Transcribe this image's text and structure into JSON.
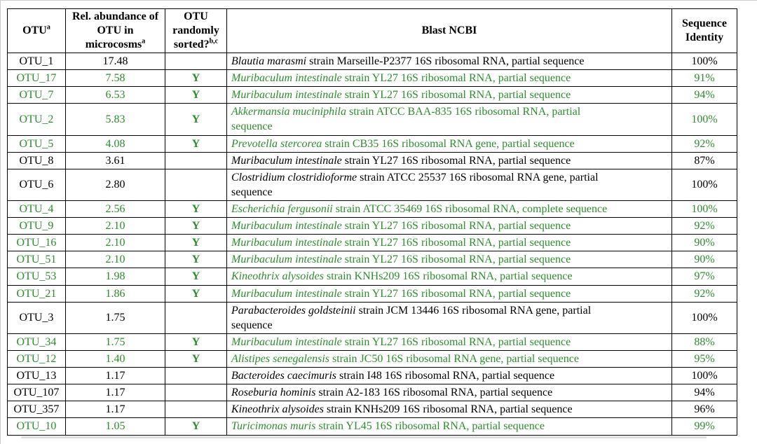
{
  "colors": {
    "highlight_green": "#2e8b2e",
    "text_black": "#000000",
    "border_black": "#000000"
  },
  "table": {
    "headers": [
      {
        "label": "OTU",
        "sup": "a"
      },
      {
        "label": "Rel. abundance of OTU in microcosms",
        "sup": "a"
      },
      {
        "label": "OTU randomly sorted?",
        "sup": "b,c"
      },
      {
        "label": "Blast NCBI",
        "sup": ""
      },
      {
        "label": "Sequence Identity",
        "sup": ""
      }
    ],
    "rows": [
      {
        "otu": "OTU_1",
        "abundance": "17.48",
        "sorted": "",
        "species": "Blautia marasmi",
        "description": " strain Marseille-P2377 16S ribosomal RNA, partial sequence",
        "identity": "100%",
        "highlighted": false
      },
      {
        "otu": "OTU_17",
        "abundance": "7.58",
        "sorted": "Y",
        "species": "Muribaculum intestinale",
        "description": " strain YL27 16S ribosomal RNA, partial sequence",
        "identity": "91%",
        "highlighted": true
      },
      {
        "otu": "OTU_7",
        "abundance": "6.53",
        "sorted": "Y",
        "species": "Muribaculum intestinale",
        "description": " strain YL27 16S ribosomal RNA, partial sequence",
        "identity": "94%",
        "highlighted": true
      },
      {
        "otu": "OTU_2",
        "abundance": "5.83",
        "sorted": "Y",
        "species": "Akkermansia muciniphila",
        "description": " strain ATCC BAA-835 16S ribosomal RNA, partial\nsequence",
        "identity": "100%",
        "highlighted": true
      },
      {
        "otu": "OTU_5",
        "abundance": "4.08",
        "sorted": "Y",
        "species": "Prevotella stercorea",
        "description": " strain CB35 16S ribosomal RNA gene, partial sequence",
        "identity": "92%",
        "highlighted": true
      },
      {
        "otu": "OTU_8",
        "abundance": "3.61",
        "sorted": "",
        "species": "Muribaculum intestinale",
        "description": " strain YL27 16S ribosomal RNA, partial sequence",
        "identity": "87%",
        "highlighted": false
      },
      {
        "otu": "OTU_6",
        "abundance": "2.80",
        "sorted": "",
        "species": "Clostridium clostridioforme",
        "description": " strain ATCC 25537 16S ribosomal RNA gene, partial\nsequence",
        "identity": "100%",
        "highlighted": false
      },
      {
        "otu": "OTU_4",
        "abundance": "2.56",
        "sorted": "Y",
        "species": "Escherichia fergusonii",
        "description": " strain ATCC 35469 16S ribosomal RNA, complete sequence",
        "identity": "100%",
        "highlighted": true
      },
      {
        "otu": "OTU_9",
        "abundance": "2.10",
        "sorted": "Y",
        "species": "Muribaculum intestinale",
        "description": " strain YL27 16S ribosomal RNA, partial sequence",
        "identity": "92%",
        "highlighted": true
      },
      {
        "otu": "OTU_16",
        "abundance": "2.10",
        "sorted": "Y",
        "species": "Muribaculum intestinale",
        "description": " strain YL27 16S ribosomal RNA, partial sequence",
        "identity": "90%",
        "highlighted": true
      },
      {
        "otu": "OTU_51",
        "abundance": "2.10",
        "sorted": "Y",
        "species": "Muribaculum intestinale",
        "description": " strain YL27 16S ribosomal RNA, partial sequence",
        "identity": "90%",
        "highlighted": true
      },
      {
        "otu": "OTU_53",
        "abundance": "1.98",
        "sorted": "Y",
        "species": "Kineothrix alysoides",
        "description": " strain KNHs209 16S ribosomal RNA, partial sequence",
        "identity": "97%",
        "highlighted": true
      },
      {
        "otu": "OTU_21",
        "abundance": "1.86",
        "sorted": "Y",
        "species": "Muribaculum intestinale",
        "description": " strain YL27 16S ribosomal RNA, partial sequence",
        "identity": "92%",
        "highlighted": true
      },
      {
        "otu": "OTU_3",
        "abundance": "1.75",
        "sorted": "",
        "species": "Parabacteroides goldsteinii",
        "description": " strain JCM 13446 16S ribosomal RNA gene, partial\nsequence",
        "identity": "100%",
        "highlighted": false
      },
      {
        "otu": "OTU_34",
        "abundance": "1.75",
        "sorted": "Y",
        "species": "Muribaculum intestinale",
        "description": " strain YL27 16S ribosomal RNA, partial sequence",
        "identity": "88%",
        "highlighted": true
      },
      {
        "otu": "OTU_12",
        "abundance": "1.40",
        "sorted": "Y",
        "species": "Alistipes senegalensis",
        "description": " strain JC50 16S ribosomal RNA gene, partial sequence",
        "identity": "95%",
        "highlighted": true
      },
      {
        "otu": "OTU_13",
        "abundance": "1.17",
        "sorted": "",
        "species": "Bacteroides caecimuris",
        "description": " strain I48 16S ribosomal RNA, partial sequence",
        "identity": "100%",
        "highlighted": false
      },
      {
        "otu": "OTU_107",
        "abundance": "1.17",
        "sorted": "",
        "species": "Roseburia hominis",
        "description": " strain A2-183 16S ribosomal RNA, partial sequence",
        "identity": "94%",
        "highlighted": false
      },
      {
        "otu": "OTU_357",
        "abundance": "1.17",
        "sorted": "",
        "species": "Kineothrix alysoides",
        "description": " strain KNHs209 16S ribosomal RNA, partial sequence",
        "identity": "96%",
        "highlighted": false
      },
      {
        "otu": "OTU_10",
        "abundance": "1.05",
        "sorted": "Y",
        "species": "Turicimonas muris",
        "description": " strain YL45 16S ribosomal RNA, partial sequence",
        "identity": "99%",
        "highlighted": true
      }
    ]
  }
}
